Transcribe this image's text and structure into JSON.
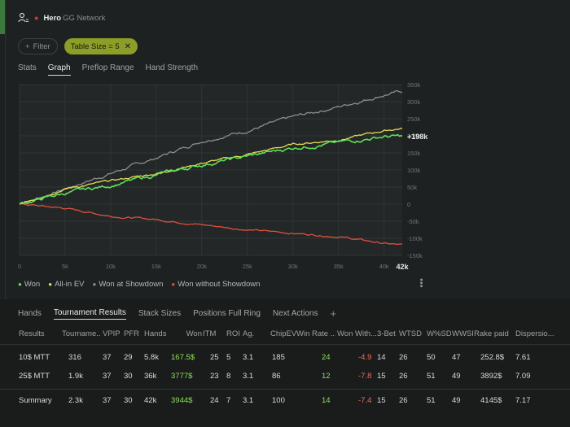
{
  "header": {
    "hero": "Hero",
    "network": "GG Network"
  },
  "filters": {
    "filter_label": "Filter",
    "chip_label": "Table Size = 5"
  },
  "tabs": [
    "Stats",
    "Graph",
    "Preflop Range",
    "Hand Strength"
  ],
  "active_tab": "Graph",
  "colors": {
    "won": "#5ee05a",
    "allin_ev": "#e8dc52",
    "showdown": "#8e8e8e",
    "non_showdown": "#e0503c",
    "chip": "#8c9d28"
  },
  "chart_data": {
    "type": "line",
    "title": "",
    "x_ticks": [
      "0",
      "5k",
      "10k",
      "15k",
      "20k",
      "25k",
      "30k",
      "35k",
      "40k"
    ],
    "x_end_label": "42k",
    "x_range": [
      0,
      42000
    ],
    "y_ticks": [
      "350k",
      "300k",
      "250k",
      "200k",
      "150k",
      "100k",
      "50k",
      "0",
      "-50k",
      "-100k",
      "-150k"
    ],
    "y_range": [
      -150000,
      350000
    ],
    "end_label": "+198k",
    "series": [
      {
        "name": "Won",
        "key": "won",
        "x": [
          0,
          5000,
          10000,
          15000,
          20000,
          25000,
          30000,
          35000,
          40000,
          42000
        ],
        "values": [
          0,
          32000,
          55000,
          85000,
          115000,
          140000,
          165000,
          180000,
          198000,
          198000
        ]
      },
      {
        "name": "All-in EV",
        "key": "allin_ev",
        "x": [
          0,
          5000,
          10000,
          15000,
          20000,
          25000,
          30000,
          35000,
          40000,
          42000
        ],
        "values": [
          0,
          45000,
          68000,
          90000,
          120000,
          145000,
          175000,
          188000,
          215000,
          222000
        ]
      },
      {
        "name": "Won at Showdown",
        "key": "showdown",
        "x": [
          0,
          5000,
          10000,
          15000,
          20000,
          25000,
          30000,
          35000,
          40000,
          42000
        ],
        "values": [
          0,
          45000,
          90000,
          135000,
          185000,
          215000,
          255000,
          285000,
          320000,
          330000
        ]
      },
      {
        "name": "Won without Showdown",
        "key": "non_showdown",
        "x": [
          0,
          5000,
          10000,
          15000,
          20000,
          25000,
          30000,
          35000,
          40000,
          42000
        ],
        "values": [
          0,
          -12000,
          -35000,
          -45000,
          -60000,
          -75000,
          -85000,
          -95000,
          -115000,
          -120000
        ]
      }
    ]
  },
  "bottom_tabs": [
    "Hands",
    "Tournament Results",
    "Stack Sizes",
    "Positions Full Ring",
    "Next Actions"
  ],
  "active_bottom_tab": "Tournament Results",
  "table": {
    "headers": [
      "Results",
      "Tourname...",
      "VPIP",
      "PFR",
      "Hands",
      "Won",
      "ITM",
      "ROI",
      "Ag.",
      "ChipEV/T",
      "Win Rate ...",
      "Won With...",
      "3-Bet",
      "WTSD",
      "W%SD",
      "WWSF%",
      "Rake paid",
      "Dispersio..."
    ],
    "rows": [
      [
        "10$ MTT",
        "316",
        "37",
        "29",
        "5.8k",
        "167.5$",
        "25",
        "5",
        "3.1",
        "185",
        "24",
        "-4.9",
        "14",
        "26",
        "50",
        "47",
        "252.8$",
        "7.61"
      ],
      [
        "25$ MTT",
        "1.9k",
        "37",
        "30",
        "36k",
        "3777$",
        "23",
        "8",
        "3.1",
        "86",
        "12",
        "-7.8",
        "15",
        "26",
        "51",
        "49",
        "3892$",
        "7.09"
      ]
    ],
    "summary": [
      "Summary",
      "2.3k",
      "37",
      "30",
      "42k",
      "3944$",
      "24",
      "7",
      "3.1",
      "100",
      "14",
      "-7.4",
      "15",
      "26",
      "51",
      "49",
      "4145$",
      "7.17"
    ]
  }
}
